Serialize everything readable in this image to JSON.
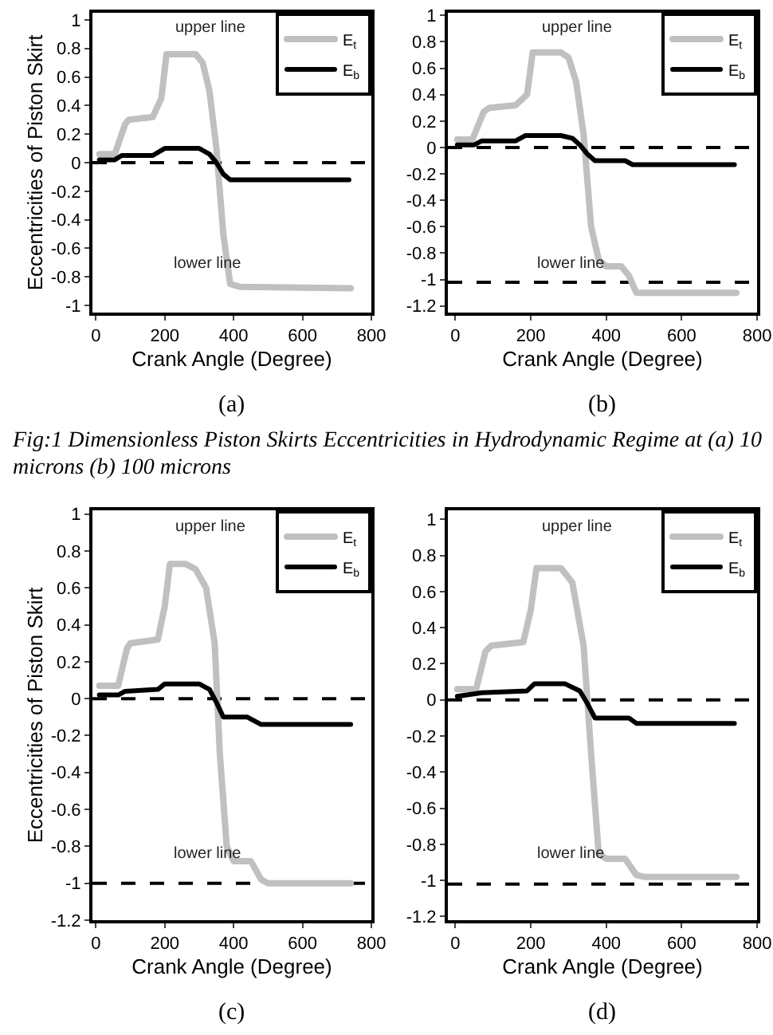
{
  "chart_data": [
    {
      "type": "line",
      "title": "Fig:1 Dimensionless Piston Skirts Eccentricities in Hydrodynamic Regime at (a) 10 microns (b) 100 microns",
      "xlabel": "Crank Angle (Degree)",
      "ylabel": "Eccentricities of Piston Skirt",
      "xlim": [
        -10,
        800
      ],
      "xticks": [
        0,
        200,
        400,
        600,
        800
      ],
      "ylim": [
        -1.05,
        1.05
      ],
      "yticks": [
        -1,
        -0.8,
        -0.6,
        -0.4,
        -0.2,
        0,
        0.2,
        0.4,
        0.6,
        0.8,
        1
      ],
      "legend": "top right",
      "annotations": [
        "(a)",
        "upper line",
        "lower line"
      ],
      "ref_lines": [
        {
          "axis": "y",
          "value": 0,
          "color": "#000000",
          "line_style": "dashed"
        }
      ],
      "series": [
        {
          "name": "E$_{t}$",
          "color": "#c0c0c0",
          "x": [
            10,
            55,
            85,
            95,
            165,
            190,
            205,
            290,
            310,
            330,
            350,
            370,
            390,
            420,
            740
          ],
          "values": [
            0.06,
            0.06,
            0.27,
            0.3,
            0.32,
            0.45,
            0.76,
            0.76,
            0.7,
            0.5,
            0.1,
            -0.5,
            -0.85,
            -0.87,
            -0.88
          ]
        },
        {
          "name": "E$_{b}$",
          "color": "#000000",
          "x": [
            10,
            55,
            75,
            165,
            200,
            300,
            330,
            350,
            370,
            390,
            735
          ],
          "values": [
            0.02,
            0.02,
            0.05,
            0.05,
            0.1,
            0.1,
            0.06,
            0,
            -0.08,
            -0.12,
            -0.12
          ]
        }
      ]
    },
    {
      "type": "line",
      "xlabel": "Crank Angle (Degree)",
      "xlim": [
        -20,
        800
      ],
      "xticks": [
        0,
        200,
        400,
        600,
        800
      ],
      "ylim": [
        -1.25,
        1.02
      ],
      "yticks": [
        -1.2,
        -1,
        -0.8,
        -0.6,
        -0.4,
        -0.2,
        0,
        0.2,
        0.4,
        0.6,
        0.8,
        1
      ],
      "legend": "top right",
      "annotations": [
        "(b)",
        "upper line",
        "lower line"
      ],
      "ref_lines": [
        {
          "axis": "y",
          "value": 0,
          "color": "#000000",
          "line_style": "dashed"
        },
        {
          "axis": "y",
          "value": -1.02,
          "color": "#000000",
          "line_style": "dashed"
        }
      ],
      "series": [
        {
          "name": "E$_{t}$",
          "color": "#c0c0c0",
          "x": [
            5,
            45,
            75,
            90,
            160,
            190,
            205,
            280,
            300,
            320,
            340,
            360,
            380,
            400,
            440,
            460,
            480,
            745
          ],
          "values": [
            0.06,
            0.06,
            0.27,
            0.3,
            0.32,
            0.4,
            0.72,
            0.72,
            0.68,
            0.5,
            0.1,
            -0.6,
            -0.85,
            -0.9,
            -0.9,
            -0.97,
            -1.1,
            -1.1
          ]
        },
        {
          "name": "E$_{b}$",
          "color": "#000000",
          "x": [
            5,
            50,
            70,
            160,
            185,
            280,
            310,
            330,
            350,
            370,
            450,
            470,
            740
          ],
          "values": [
            0.02,
            0.02,
            0.05,
            0.05,
            0.09,
            0.09,
            0.07,
            0.02,
            -0.05,
            -0.1,
            -0.1,
            -0.13,
            -0.13
          ]
        }
      ]
    },
    {
      "type": "line",
      "xlabel": "Crank Angle (Degree)",
      "ylabel": "Eccentricities of Piston Skirt",
      "xlim": [
        -10,
        800
      ],
      "xticks": [
        0,
        200,
        400,
        600,
        800
      ],
      "ylim": [
        -1.2,
        1.02
      ],
      "yticks": [
        -1.2,
        -1,
        -0.8,
        -0.6,
        -0.4,
        -0.2,
        0,
        0.2,
        0.4,
        0.6,
        0.8,
        1
      ],
      "legend": "top right",
      "annotations": [
        "(c)",
        "upper line",
        "lower line"
      ],
      "ref_lines": [
        {
          "axis": "y",
          "value": 0,
          "color": "#000000",
          "line_style": "dashed"
        },
        {
          "axis": "y",
          "value": -1,
          "color": "#000000",
          "line_style": "dashed"
        }
      ],
      "series": [
        {
          "name": "E$_{t}$",
          "color": "#c0c0c0",
          "x": [
            10,
            65,
            90,
            100,
            180,
            200,
            215,
            260,
            290,
            320,
            345,
            360,
            380,
            400,
            450,
            480,
            500,
            740
          ],
          "values": [
            0.07,
            0.07,
            0.27,
            0.3,
            0.32,
            0.5,
            0.73,
            0.73,
            0.7,
            0.6,
            0.3,
            -0.3,
            -0.8,
            -0.88,
            -0.88,
            -0.98,
            -1,
            -1
          ]
        },
        {
          "name": "E$_{b}$",
          "color": "#000000",
          "x": [
            10,
            65,
            85,
            180,
            200,
            300,
            330,
            350,
            370,
            440,
            480,
            740
          ],
          "values": [
            0.02,
            0.02,
            0.04,
            0.05,
            0.08,
            0.08,
            0.05,
            -0.02,
            -0.1,
            -0.1,
            -0.14,
            -0.14
          ]
        }
      ]
    },
    {
      "type": "line",
      "xlabel": "Crank Angle (Degree)",
      "xlim": [
        -20,
        800
      ],
      "xticks": [
        0,
        200,
        400,
        600,
        800
      ],
      "ylim": [
        -1.22,
        1.05
      ],
      "yticks": [
        -1.2,
        -1,
        -0.8,
        -0.6,
        -0.4,
        -0.2,
        0,
        0.2,
        0.4,
        0.6,
        0.8,
        1
      ],
      "legend": "top right",
      "annotations": [
        "(d)",
        "upper line",
        "lower line"
      ],
      "ref_lines": [
        {
          "axis": "y",
          "value": 0,
          "color": "#000000",
          "line_style": "dashed"
        },
        {
          "axis": "y",
          "value": -1.02,
          "color": "#000000",
          "line_style": "dashed"
        }
      ],
      "series": [
        {
          "name": "E$_{t}$",
          "color": "#c0c0c0",
          "x": [
            5,
            55,
            80,
            95,
            180,
            200,
            215,
            280,
            310,
            340,
            360,
            380,
            400,
            450,
            480,
            500,
            745
          ],
          "values": [
            0.06,
            0.06,
            0.27,
            0.3,
            0.32,
            0.5,
            0.73,
            0.73,
            0.65,
            0.3,
            -0.3,
            -0.85,
            -0.88,
            -0.88,
            -0.97,
            -0.98,
            -0.98
          ]
        },
        {
          "name": "E$_{b}$",
          "color": "#000000",
          "x": [
            5,
            70,
            190,
            210,
            290,
            330,
            350,
            370,
            460,
            480,
            740
          ],
          "values": [
            0.02,
            0.04,
            0.05,
            0.09,
            0.09,
            0.05,
            -0.02,
            -0.1,
            -0.1,
            -0.13,
            -0.13
          ]
        }
      ]
    }
  ]
}
